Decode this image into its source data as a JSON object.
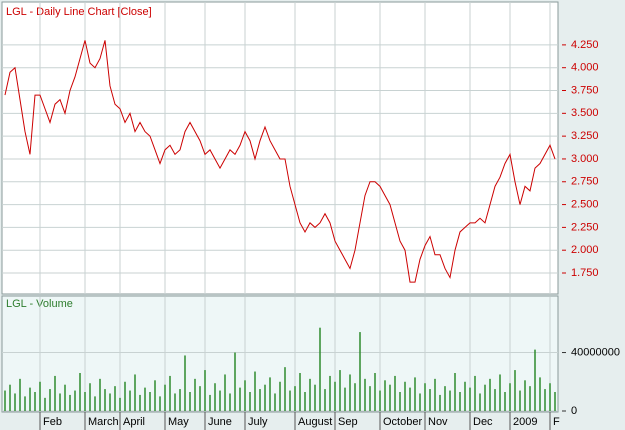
{
  "chart_data": [
    {
      "type": "line",
      "title": "LGL - Daily Line Chart [Close]",
      "color": "#cc0000",
      "values": [
        3.7,
        3.95,
        4.0,
        3.65,
        3.3,
        3.05,
        3.7,
        3.7,
        3.55,
        3.4,
        3.6,
        3.65,
        3.5,
        3.75,
        3.9,
        4.1,
        4.3,
        4.05,
        4.0,
        4.1,
        4.3,
        3.8,
        3.6,
        3.55,
        3.4,
        3.5,
        3.3,
        3.4,
        3.3,
        3.25,
        3.1,
        2.95,
        3.1,
        3.15,
        3.05,
        3.1,
        3.3,
        3.4,
        3.3,
        3.2,
        3.05,
        3.1,
        3.0,
        2.9,
        3.0,
        3.1,
        3.05,
        3.15,
        3.3,
        3.2,
        3.0,
        3.2,
        3.35,
        3.2,
        3.1,
        3.0,
        3.0,
        2.7,
        2.5,
        2.3,
        2.2,
        2.3,
        2.25,
        2.3,
        2.4,
        2.3,
        2.1,
        2.0,
        1.9,
        1.8,
        2.0,
        2.3,
        2.6,
        2.75,
        2.75,
        2.7,
        2.6,
        2.5,
        2.3,
        2.1,
        2.0,
        1.65,
        1.65,
        1.9,
        2.05,
        2.15,
        1.95,
        1.95,
        1.8,
        1.7,
        2.0,
        2.2,
        2.25,
        2.3,
        2.3,
        2.35,
        2.3,
        2.5,
        2.7,
        2.8,
        2.95,
        3.05,
        2.75,
        2.5,
        2.7,
        2.65,
        2.9,
        2.95,
        3.05,
        3.15,
        3.0
      ],
      "ylim": [
        1.52,
        4.72
      ],
      "yticks": [
        {
          "value": 1.75,
          "label": "1.750"
        },
        {
          "value": 2.0,
          "label": "2.000"
        },
        {
          "value": 2.25,
          "label": "2.250"
        },
        {
          "value": 2.5,
          "label": "2.500"
        },
        {
          "value": 2.75,
          "label": "2.750"
        },
        {
          "value": 3.0,
          "label": "3.000"
        },
        {
          "value": 3.25,
          "label": "3.250"
        },
        {
          "value": 3.5,
          "label": "3.500"
        },
        {
          "value": 3.75,
          "label": "3.750"
        },
        {
          "value": 4.0,
          "label": "4.000"
        },
        {
          "value": 4.25,
          "label": "4.250"
        }
      ],
      "grid": true
    },
    {
      "type": "bar",
      "title": "LGL - Volume",
      "color": "#2e8b2e",
      "values": [
        14000000,
        18000000,
        12000000,
        22000000,
        10000000,
        16000000,
        13000000,
        20000000,
        9000000,
        15000000,
        24000000,
        12000000,
        18000000,
        11000000,
        14000000,
        26000000,
        13000000,
        19000000,
        10000000,
        22000000,
        15000000,
        12000000,
        17000000,
        9000000,
        20000000,
        14000000,
        25000000,
        11000000,
        16000000,
        13000000,
        21000000,
        10000000,
        18000000,
        24000000,
        12000000,
        15000000,
        38000000,
        13000000,
        22000000,
        17000000,
        28000000,
        11000000,
        19000000,
        14000000,
        25000000,
        12000000,
        40000000,
        16000000,
        21000000,
        13000000,
        27000000,
        15000000,
        18000000,
        23000000,
        12000000,
        20000000,
        30000000,
        14000000,
        17000000,
        26000000,
        13000000,
        22000000,
        18000000,
        57000000,
        15000000,
        24000000,
        20000000,
        28000000,
        16000000,
        25000000,
        19000000,
        54000000,
        22000000,
        17000000,
        26000000,
        14000000,
        21000000,
        18000000,
        24000000,
        13000000,
        20000000,
        16000000,
        23000000,
        12000000,
        19000000,
        15000000,
        22000000,
        11000000,
        17000000,
        14000000,
        26000000,
        13000000,
        20000000,
        16000000,
        24000000,
        12000000,
        18000000,
        22000000,
        15000000,
        25000000,
        13000000,
        19000000,
        28000000,
        14000000,
        21000000,
        17000000,
        42000000,
        23000000,
        15000000,
        19000000,
        13000000
      ],
      "ylim": [
        0,
        78000000
      ],
      "yticks": [
        0,
        40000000
      ],
      "xticks": [
        {
          "value": 7,
          "label": "Feb"
        },
        {
          "value": 16,
          "label": "March"
        },
        {
          "value": 23,
          "label": "April"
        },
        {
          "value": 32,
          "label": "May"
        },
        {
          "value": 40,
          "label": "June"
        },
        {
          "value": 48,
          "label": "July"
        },
        {
          "value": 58,
          "label": "August"
        },
        {
          "value": 66,
          "label": "Sep"
        },
        {
          "value": 75,
          "label": "October"
        },
        {
          "value": 84,
          "label": "Nov"
        },
        {
          "value": 93,
          "label": "Dec"
        },
        {
          "value": 101,
          "label": "2009"
        },
        {
          "value": 109,
          "label": "F"
        }
      ],
      "grid": true
    }
  ]
}
